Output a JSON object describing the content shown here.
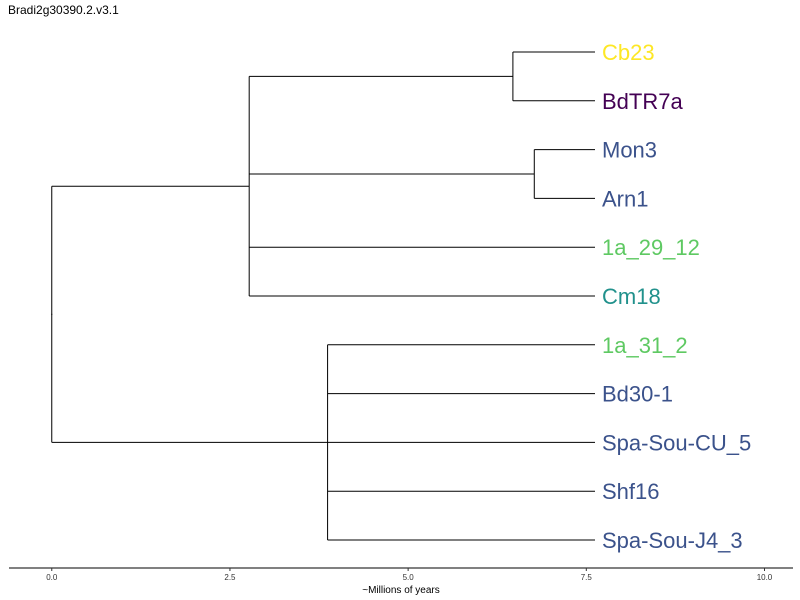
{
  "title": "Bradi2g30390.2.v3.1",
  "xaxis": {
    "label": "~Millions of years",
    "range": [
      -0.6,
      10.4
    ],
    "ticks": [
      {
        "value": 0,
        "label": "0.0"
      },
      {
        "value": 2.5,
        "label": "2.5"
      },
      {
        "value": 5,
        "label": "5.0"
      },
      {
        "value": 7.5,
        "label": "7.5"
      },
      {
        "value": 10,
        "label": "10.0"
      }
    ]
  },
  "tree": {
    "age": 7.8,
    "children": [
      {
        "age": 5.03,
        "children": [
          {
            "age": 1.33,
            "children": [
              {
                "label": "Cb23",
                "color": "#fde725"
              },
              {
                "label": "BdTR7a",
                "color": "#440154"
              }
            ]
          },
          {
            "age": 1.03,
            "children": [
              {
                "label": "Mon3",
                "color": "#3b528b"
              },
              {
                "label": "Arn1",
                "color": "#3b528b"
              }
            ]
          },
          {
            "label": "1a_29_12",
            "color": "#5ec962"
          },
          {
            "label": "Cm18",
            "color": "#21918c"
          }
        ]
      },
      {
        "age": 3.93,
        "children": [
          {
            "label": "1a_31_2",
            "color": "#5ec962"
          },
          {
            "label": "Bd30-1",
            "color": "#3b528b"
          },
          {
            "label": "Spa-Sou-CU_5",
            "color": "#3b528b"
          },
          {
            "label": "Shf16",
            "color": "#3b528b"
          },
          {
            "label": "Spa-Sou-J4_3",
            "color": "#3b528b"
          }
        ]
      }
    ]
  }
}
